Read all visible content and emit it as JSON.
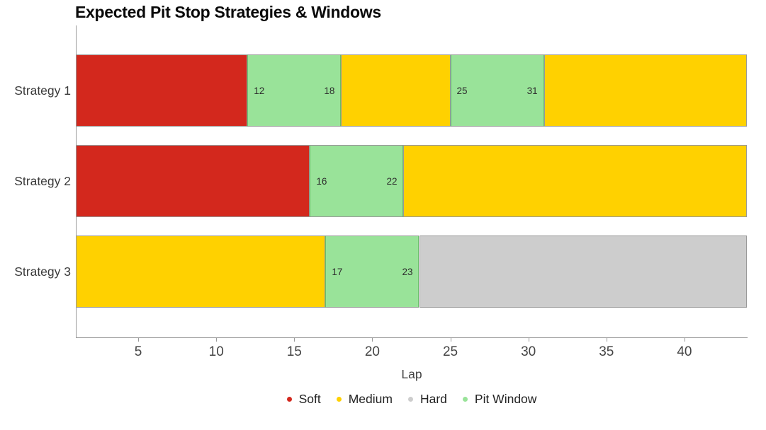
{
  "chart": {
    "title": "Expected Pit Stop Strategies & Windows",
    "xlabel": "Lap"
  },
  "chart_data": {
    "type": "bar",
    "orientation": "horizontal",
    "stacked": true,
    "title": "Expected Pit Stop Strategies & Windows",
    "xlabel": "Lap",
    "ylabel": "",
    "x_range": [
      1,
      44
    ],
    "x_ticks": [
      5,
      10,
      15,
      20,
      25,
      30,
      35,
      40
    ],
    "grid": false,
    "legend_position": "bottom-center",
    "categories": [
      "Strategy 1",
      "Strategy 2",
      "Strategy 3"
    ],
    "legend": [
      "Soft",
      "Medium",
      "Hard",
      "Pit Window"
    ],
    "colors": {
      "Soft": "#d3281d",
      "Medium": "#ffd100",
      "Hard": "#cdcdcd",
      "Pit Window": "#99e399"
    },
    "segment_border_color": "#999999",
    "pit_window_border_color": "#68bd68",
    "series": [
      {
        "category": "Strategy 1",
        "segments": [
          {
            "compound": "Soft",
            "start_lap": 1,
            "end_lap": 12
          },
          {
            "compound": "Pit Window",
            "start_lap": 12,
            "end_lap": 18,
            "labels": [
              "12",
              "18"
            ]
          },
          {
            "compound": "Medium",
            "start_lap": 18,
            "end_lap": 25
          },
          {
            "compound": "Pit Window",
            "start_lap": 25,
            "end_lap": 31,
            "labels": [
              "25",
              "31"
            ]
          },
          {
            "compound": "Medium",
            "start_lap": 31,
            "end_lap": 44
          }
        ]
      },
      {
        "category": "Strategy 2",
        "segments": [
          {
            "compound": "Soft",
            "start_lap": 1,
            "end_lap": 16
          },
          {
            "compound": "Pit Window",
            "start_lap": 16,
            "end_lap": 22,
            "labels": [
              "16",
              "22"
            ]
          },
          {
            "compound": "Medium",
            "start_lap": 22,
            "end_lap": 44
          }
        ]
      },
      {
        "category": "Strategy 3",
        "segments": [
          {
            "compound": "Medium",
            "start_lap": 1,
            "end_lap": 17
          },
          {
            "compound": "Pit Window",
            "start_lap": 17,
            "end_lap": 23,
            "labels": [
              "17",
              "23"
            ]
          },
          {
            "compound": "Hard",
            "start_lap": 23,
            "end_lap": 44
          }
        ]
      }
    ]
  }
}
